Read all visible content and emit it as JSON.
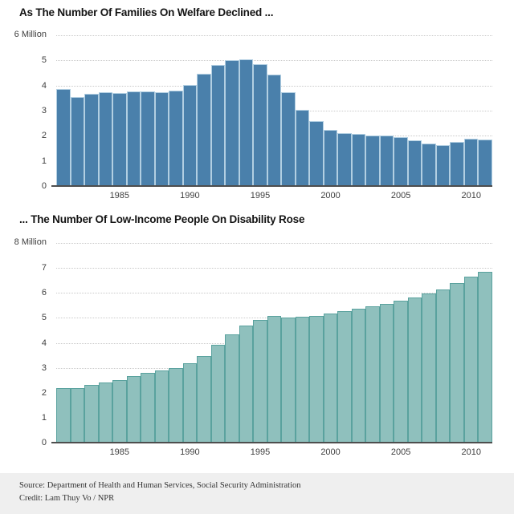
{
  "page": {
    "background": "#ffffff"
  },
  "chart_data": [
    {
      "type": "bar",
      "title": "As The Number Of Families On Welfare Declined ...",
      "unit_label": "6 Million",
      "ylim": [
        0,
        6
      ],
      "y_ticks": [
        0,
        1,
        2,
        3,
        4,
        5
      ],
      "x_tick_years": [
        1985,
        1990,
        1995,
        2000,
        2005,
        2010
      ],
      "grid": "dotted",
      "legend": "none",
      "categories": [
        1981,
        1982,
        1983,
        1984,
        1985,
        1986,
        1987,
        1988,
        1989,
        1990,
        1991,
        1992,
        1993,
        1994,
        1995,
        1996,
        1997,
        1998,
        1999,
        2000,
        2001,
        2002,
        2003,
        2004,
        2005,
        2006,
        2007,
        2008,
        2009,
        2010,
        2011
      ],
      "values": [
        3.85,
        3.56,
        3.66,
        3.72,
        3.7,
        3.76,
        3.77,
        3.74,
        3.79,
        4.03,
        4.46,
        4.81,
        5.0,
        5.05,
        4.85,
        4.44,
        3.74,
        3.04,
        2.58,
        2.24,
        2.1,
        2.07,
        2.02,
        2.0,
        1.95,
        1.81,
        1.7,
        1.63,
        1.76,
        1.87,
        1.85
      ],
      "bar_fill": "#4a80ab",
      "bar_stroke": "#b2cfe2",
      "grid_color": "#c9c9c9",
      "axis_color": "#4e4e4e"
    },
    {
      "type": "bar",
      "title": "... The Number Of Low-Income People On Disability Rose",
      "unit_label": "8 Million",
      "ylim": [
        0,
        8
      ],
      "y_ticks": [
        0,
        1,
        2,
        3,
        4,
        5,
        6,
        7
      ],
      "x_tick_years": [
        1985,
        1990,
        1995,
        2000,
        2005,
        2010
      ],
      "grid": "dotted",
      "legend": "none",
      "categories": [
        1981,
        1982,
        1983,
        1984,
        1985,
        1986,
        1987,
        1988,
        1989,
        1990,
        1991,
        1992,
        1993,
        1994,
        1995,
        1996,
        1997,
        1998,
        1999,
        2000,
        2001,
        2002,
        2003,
        2004,
        2005,
        2006,
        2007,
        2008,
        2009,
        2010,
        2011
      ],
      "values": [
        2.2,
        2.18,
        2.3,
        2.4,
        2.52,
        2.66,
        2.8,
        2.9,
        2.98,
        3.18,
        3.47,
        3.92,
        4.35,
        4.68,
        4.93,
        5.07,
        5.0,
        5.05,
        5.08,
        5.17,
        5.27,
        5.37,
        5.47,
        5.57,
        5.68,
        5.81,
        5.97,
        6.15,
        6.4,
        6.65,
        6.85
      ],
      "bar_fill": "#8fc0bd",
      "bar_stroke": "#5aa29e",
      "grid_color": "#c9c9c9",
      "axis_color": "#4e4e4e"
    }
  ],
  "footer": {
    "source": "Source: Department of Health and Human Services, Social Security Administration",
    "credit": "Credit: Lam Thuy Vo / NPR"
  }
}
